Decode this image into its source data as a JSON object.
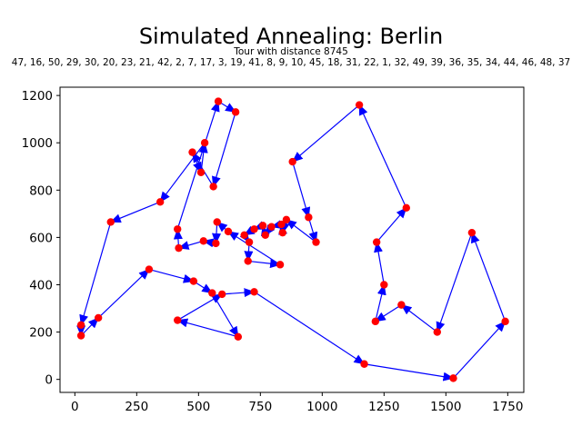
{
  "chart_data": {
    "type": "scatter",
    "title": "Simulated Annealing: Berlin",
    "subtitle": "Tour with distance 8745",
    "tour_text": "47, 16, 50, 29, 30, 20, 23, 21, 42, 2, 7, 17, 3, 19, 41, 8, 9, 10, 45, 18, 31, 22, 1, 32, 49, 39, 36, 35, 34, 44, 46, 48, 37",
    "xlabel": "",
    "ylabel": "",
    "xlim": [
      -60,
      1815
    ],
    "ylim": [
      -55,
      1235
    ],
    "xticks": [
      0,
      250,
      500,
      750,
      1000,
      1250,
      1500,
      1750
    ],
    "yticks": [
      0,
      200,
      400,
      600,
      800,
      1000,
      1200
    ],
    "grid": false,
    "colors": {
      "city": "#ff0000",
      "edge": "#0000ff"
    },
    "cities": [
      [
        580,
        1175
      ],
      [
        650,
        1130
      ],
      [
        560,
        815
      ],
      [
        475,
        960
      ],
      [
        510,
        875
      ],
      [
        525,
        1000
      ],
      [
        345,
        750
      ],
      [
        145,
        665
      ],
      [
        25,
        230
      ],
      [
        25,
        185
      ],
      [
        95,
        260
      ],
      [
        300,
        465
      ],
      [
        480,
        415
      ],
      [
        555,
        365
      ],
      [
        660,
        180
      ],
      [
        415,
        250
      ],
      [
        595,
        360
      ],
      [
        725,
        370
      ],
      [
        1170,
        65
      ],
      [
        1530,
        5
      ],
      [
        1740,
        245
      ],
      [
        1605,
        620
      ],
      [
        1465,
        200
      ],
      [
        1320,
        315
      ],
      [
        1215,
        245
      ],
      [
        1250,
        400
      ],
      [
        1220,
        580
      ],
      [
        1340,
        725
      ],
      [
        1150,
        1160
      ],
      [
        880,
        920
      ],
      [
        945,
        685
      ],
      [
        975,
        580
      ],
      [
        855,
        675
      ],
      [
        840,
        620
      ],
      [
        835,
        655
      ],
      [
        795,
        645
      ],
      [
        770,
        610
      ],
      [
        760,
        650
      ],
      [
        725,
        635
      ],
      [
        685,
        610
      ],
      [
        705,
        580
      ],
      [
        700,
        500
      ],
      [
        830,
        485
      ],
      [
        620,
        625
      ],
      [
        575,
        665
      ],
      [
        570,
        575
      ],
      [
        520,
        585
      ],
      [
        420,
        555
      ],
      [
        415,
        635
      ]
    ]
  }
}
